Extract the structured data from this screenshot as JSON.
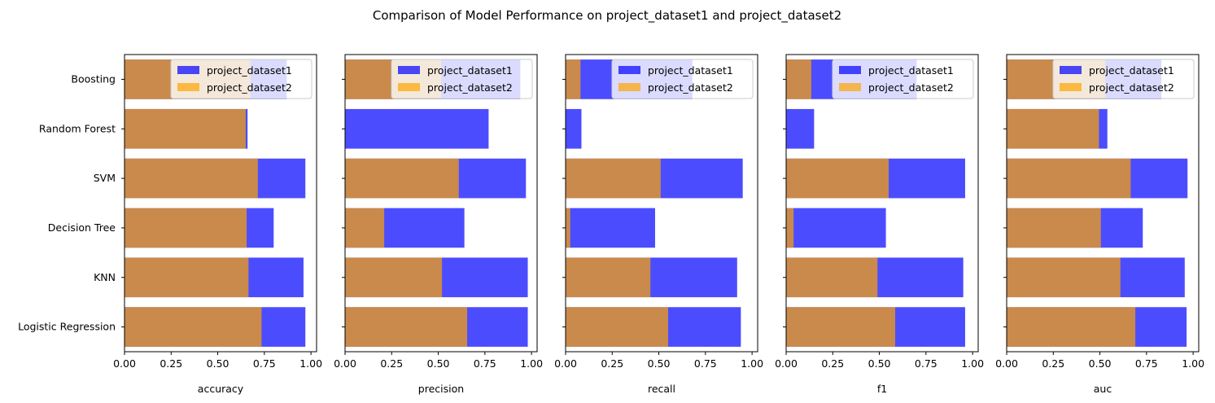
{
  "chart_data": {
    "type": "bar",
    "orientation": "horizontal",
    "title": "Comparison of Model Performance on project_dataset1 and project_dataset2",
    "categories": [
      "Logistic Regression",
      "KNN",
      "Decision Tree",
      "SVM",
      "Random Forest",
      "Boosting"
    ],
    "series_names": [
      "project_dataset1",
      "project_dataset2"
    ],
    "colors": {
      "project_dataset1": "#0000ff",
      "project_dataset2": "#ffa500"
    },
    "opacity": 0.7,
    "xlim": [
      0,
      1.03
    ],
    "xticks": [
      "0.00",
      "0.25",
      "0.50",
      "0.75",
      "1.00"
    ],
    "legend_position": "top-right",
    "panels": [
      {
        "metric": "accuracy",
        "xlabel": "accuracy",
        "series": [
          {
            "name": "project_dataset1",
            "values": [
              0.97,
              0.96,
              0.8,
              0.97,
              0.66,
              0.87
            ]
          },
          {
            "name": "project_dataset2",
            "values": [
              0.735,
              0.665,
              0.655,
              0.715,
              0.65,
              0.675
            ]
          }
        ]
      },
      {
        "metric": "precision",
        "xlabel": "precision",
        "series": [
          {
            "name": "project_dataset1",
            "values": [
              0.98,
              0.98,
              0.64,
              0.97,
              0.77,
              0.94
            ]
          },
          {
            "name": "project_dataset2",
            "values": [
              0.655,
              0.52,
              0.21,
              0.61,
              0.0,
              0.515
            ]
          }
        ]
      },
      {
        "metric": "recall",
        "xlabel": "recall",
        "series": [
          {
            "name": "project_dataset1",
            "values": [
              0.94,
              0.92,
              0.48,
              0.95,
              0.085,
              0.68
            ]
          },
          {
            "name": "project_dataset2",
            "values": [
              0.55,
              0.455,
              0.025,
              0.51,
              0.0,
              0.08
            ]
          }
        ]
      },
      {
        "metric": "f1",
        "xlabel": "f1",
        "series": [
          {
            "name": "project_dataset1",
            "values": [
              0.96,
              0.95,
              0.535,
              0.96,
              0.15,
              0.7
            ]
          },
          {
            "name": "project_dataset2",
            "values": [
              0.585,
              0.49,
              0.04,
              0.55,
              0.0,
              0.135
            ]
          }
        ]
      },
      {
        "metric": "auc",
        "xlabel": "auc",
        "series": [
          {
            "name": "project_dataset1",
            "values": [
              0.965,
              0.955,
              0.73,
              0.97,
              0.54,
              0.83
            ]
          },
          {
            "name": "project_dataset2",
            "values": [
              0.69,
              0.61,
              0.505,
              0.665,
              0.495,
              0.53
            ]
          }
        ]
      }
    ]
  }
}
